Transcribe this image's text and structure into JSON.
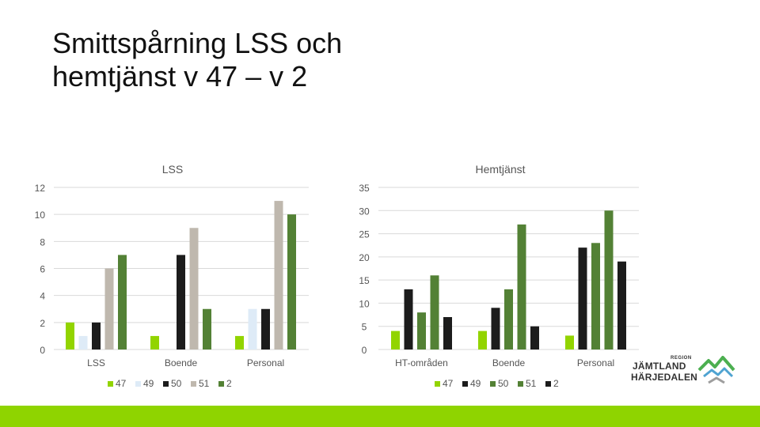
{
  "slide": {
    "title_line1": "Smittspårning LSS och",
    "title_line2": "hemtjänst v 47 – v 2"
  },
  "logo": {
    "region": "REGION",
    "name_line1": "JÄMTLAND",
    "name_line2": "HÄRJEDALEN"
  },
  "colors": {
    "47": "#92d400",
    "49": "#deebf7",
    "50": "#1c1c1c",
    "51": "#bfb8ae",
    "2": "#538135",
    "bottom_bar": "#8fd400"
  },
  "chart_data": [
    {
      "type": "bar",
      "title": "LSS",
      "categories": [
        "LSS",
        "Boende",
        "Personal"
      ],
      "ylim": [
        0,
        12
      ],
      "yticks": [
        0,
        2,
        4,
        6,
        8,
        10,
        12
      ],
      "grid": true,
      "legend_position": "bottom",
      "series": [
        {
          "name": "47",
          "color": "#92d400",
          "values": [
            2,
            1,
            1
          ]
        },
        {
          "name": "49",
          "color": "#deebf7",
          "values": [
            1,
            0,
            3
          ]
        },
        {
          "name": "50",
          "color": "#1c1c1c",
          "values": [
            2,
            7,
            3
          ]
        },
        {
          "name": "51",
          "color": "#bfb8ae",
          "values": [
            6,
            9,
            11
          ]
        },
        {
          "name": "2",
          "color": "#538135",
          "values": [
            7,
            3,
            10
          ]
        }
      ]
    },
    {
      "type": "bar",
      "title": "Hemtjänst",
      "categories": [
        "HT-områden",
        "Boende",
        "Personal"
      ],
      "ylim": [
        0,
        35
      ],
      "yticks": [
        0,
        5,
        10,
        15,
        20,
        25,
        30,
        35
      ],
      "grid": true,
      "legend_position": "bottom",
      "series": [
        {
          "name": "47",
          "color": "#92d400",
          "values": [
            4,
            4,
            3
          ]
        },
        {
          "name": "49",
          "color": "#1c1c1c",
          "values": [
            13,
            9,
            22
          ]
        },
        {
          "name": "50",
          "color": "#538135",
          "values": [
            8,
            13,
            23
          ]
        },
        {
          "name": "51",
          "color": "#538135",
          "values": [
            16,
            27,
            30
          ]
        },
        {
          "name": "2",
          "color": "#1c1c1c",
          "values": [
            7,
            5,
            19
          ]
        }
      ]
    }
  ]
}
